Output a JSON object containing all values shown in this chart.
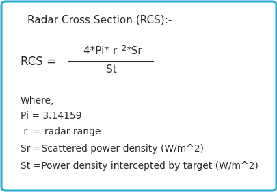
{
  "title": "Radar Cross Section (RCS):-",
  "rcs_label": "RCS =",
  "num_part1": "4*Pi* r",
  "num_superscript": "2",
  "num_part2": "*Sr",
  "denominator": "St",
  "where_label": "Where,",
  "pi_label": "Pi = 3.14159",
  "r_label": " r  = radar range",
  "sr_label": "Sr =Scattered power density (W/m^2)",
  "st_label": "St =Power density intercepted by target (W/m^2)",
  "border_color": "#29ABD4",
  "bg_color": "#ffffff",
  "text_color": "#2a2a2a",
  "title_fontsize": 11,
  "body_fontsize": 10,
  "formula_fontsize": 11,
  "figwidth": 4.06,
  "figheight": 2.8,
  "dpi": 100
}
